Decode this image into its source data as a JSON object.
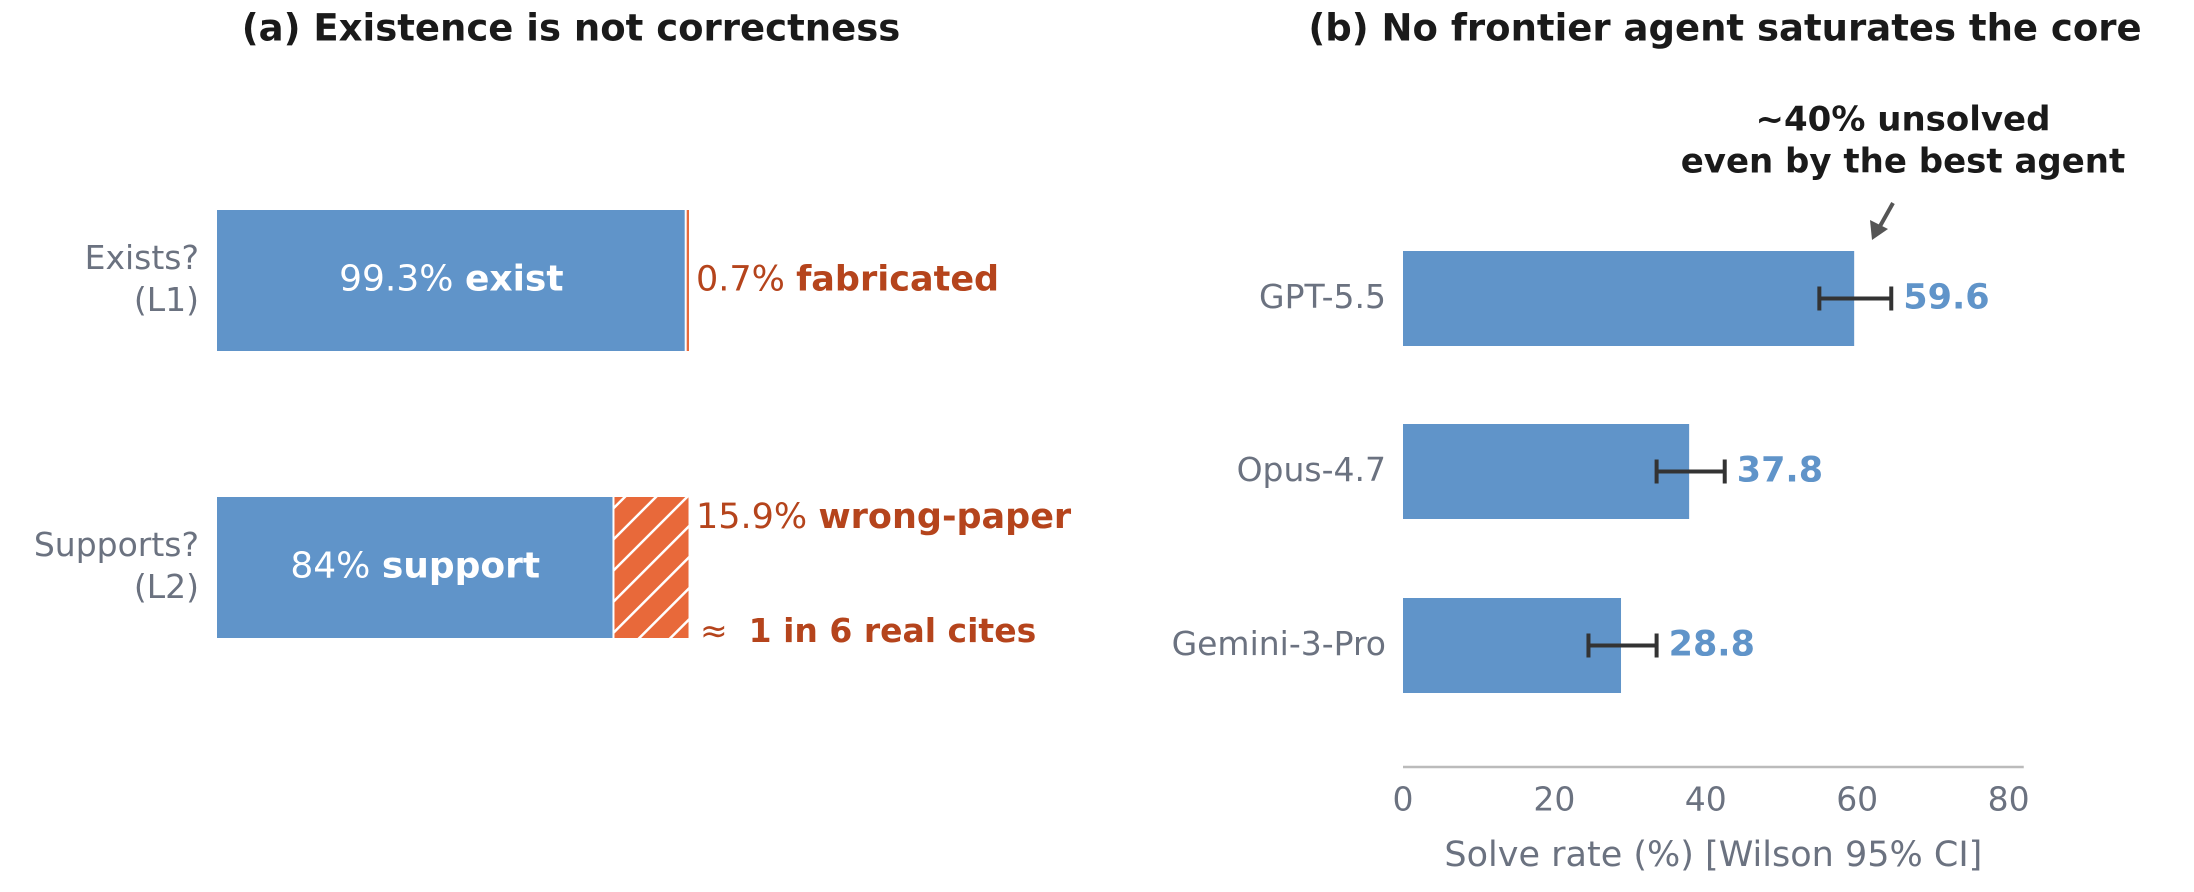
{
  "chart_data": [
    {
      "type": "bar",
      "stacked": true,
      "orientation": "horizontal",
      "title": "(a) Existence is not correctness",
      "xlim": [
        0,
        100
      ],
      "bars": [
        {
          "category": [
            "Exists?",
            "(L1)"
          ],
          "segments": [
            {
              "name": "exist",
              "value": 99.3,
              "value_label": "99.3%",
              "color": "#6094c9",
              "hatch": false
            },
            {
              "name": "fabricated",
              "value": 0.7,
              "value_label": "0.7%",
              "color": "#e8693a",
              "hatch": false
            }
          ]
        },
        {
          "category": [
            "Supports?",
            "(L2)"
          ],
          "segments": [
            {
              "name": "support",
              "value": 84,
              "value_label": "84%",
              "color": "#6094c9",
              "hatch": false
            },
            {
              "name": "wrong-paper",
              "value": 15.9,
              "value_label": "15.9%",
              "color": "#e8693a",
              "hatch": true
            }
          ],
          "annotation": {
            "prefix": "≈",
            "text": "1 in 6 real cites"
          }
        }
      ],
      "label_color": "#b5441c"
    },
    {
      "type": "bar",
      "orientation": "horizontal",
      "title": "(b) No frontier agent saturates the core",
      "categories": [
        "GPT-5.5",
        "Opus-4.7",
        "Gemini-3-Pro"
      ],
      "values": [
        59.6,
        37.8,
        28.8
      ],
      "ci": [
        [
          55.0,
          64.5
        ],
        [
          33.5,
          42.5
        ],
        [
          24.5,
          33.5
        ]
      ],
      "color": "#6094c9",
      "xlim": [
        0,
        82
      ],
      "xticks": [
        0,
        20,
        40,
        60,
        80
      ],
      "xlabel": "Solve rate (%) [Wilson 95% CI]",
      "annotation": [
        "~40% unsolved",
        "even by the best agent"
      ]
    }
  ]
}
